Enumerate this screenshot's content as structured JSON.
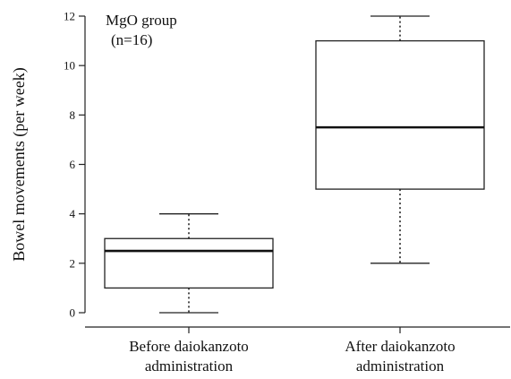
{
  "chart_data": {
    "type": "box",
    "title": "",
    "annotation": {
      "line1": "MgO group",
      "line2": "(n=16)"
    },
    "ylabel": "Bowel movements (per week)",
    "xlabel": "",
    "ylim": [
      0,
      12
    ],
    "yticks": [
      0,
      2,
      4,
      6,
      8,
      10,
      12
    ],
    "grid": false,
    "categories": [
      {
        "line1": "Before daiokanzoto",
        "line2": "administration"
      },
      {
        "line1": "After daiokanzoto",
        "line2": "administration"
      }
    ],
    "boxes": [
      {
        "category": "Before daiokanzoto administration",
        "min": 0,
        "q1": 1,
        "median": 2.5,
        "q3": 3,
        "max": 4
      },
      {
        "category": "After daiokanzoto administration",
        "min": 2,
        "q1": 5,
        "median": 7.5,
        "q3": 11,
        "max": 12
      }
    ]
  }
}
